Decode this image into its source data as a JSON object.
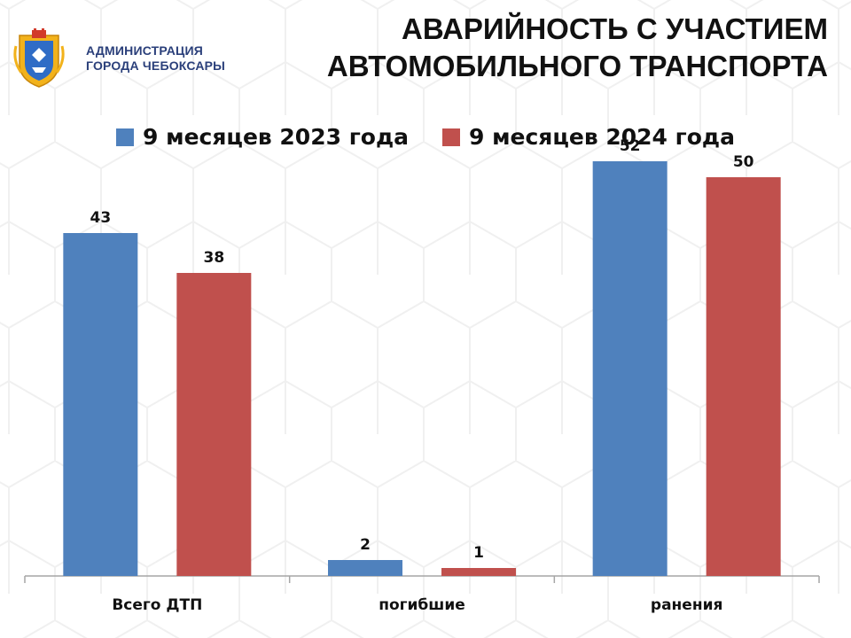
{
  "header": {
    "org_line1": "АДМИНИСТРАЦИЯ",
    "org_line2": "ГОРОДА ЧЕБОКСАРЫ",
    "logo_icon": "city-coat-of-arms-icon"
  },
  "title": {
    "line1": "АВАРИЙНОСТЬ С УЧАСТИЕМ",
    "line2": "АВТОМОБИЛЬНОГО ТРАНСПОРТА"
  },
  "colors": {
    "series_2023": "#4f81bd",
    "series_2024": "#c0504d",
    "axis": "#a6a6a6",
    "text": "#111111"
  },
  "chart_data": {
    "type": "bar",
    "title": "",
    "xlabel": "",
    "ylabel": "",
    "categories": [
      "Всего ДТП",
      "погибшие",
      "ранения"
    ],
    "series": [
      {
        "name": "9 месяцев 2023 года",
        "values": [
          43,
          2,
          52
        ],
        "color": "#4f81bd"
      },
      {
        "name": "9 месяцев 2024 года",
        "values": [
          38,
          1,
          50
        ],
        "color": "#c0504d"
      }
    ],
    "ylim": [
      0,
      60
    ],
    "grid": false,
    "legend": "top",
    "data_labels": true
  }
}
